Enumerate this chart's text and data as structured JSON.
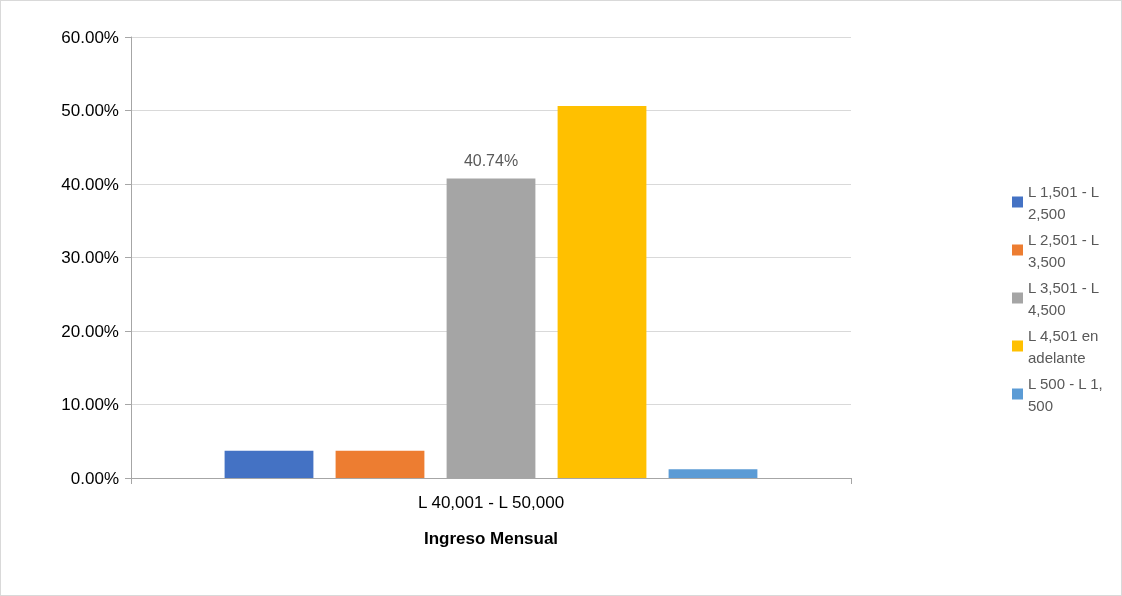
{
  "chart_data": {
    "type": "bar",
    "xlabel": "Ingreso Mensual",
    "categories": [
      "L 40,001 - L 50,000"
    ],
    "series": [
      {
        "name": "L 1,501 - L 2,500",
        "color": "#4472c4",
        "values": [
          3.7
        ],
        "value_labels": [
          null
        ]
      },
      {
        "name": "L 2,501 - L 3,500",
        "color": "#ed7d31",
        "values": [
          3.7
        ],
        "value_labels": [
          null
        ]
      },
      {
        "name": "L 3,501 - L 4,500",
        "color": "#a5a5a5",
        "values": [
          40.74
        ],
        "value_labels": [
          "40.74%"
        ]
      },
      {
        "name": "L 4,501 en adelante",
        "color": "#ffc000",
        "values": [
          50.6
        ],
        "value_labels": [
          null
        ]
      },
      {
        "name": "L 500 - L 1,500",
        "color": "#5b9bd5",
        "values": [
          1.2
        ],
        "value_labels": [
          null
        ]
      }
    ],
    "ylim": [
      0,
      60
    ],
    "yticks": [
      {
        "value": 0,
        "label": "0.00%"
      },
      {
        "value": 10,
        "label": "10.00%"
      },
      {
        "value": 20,
        "label": "20.00%"
      },
      {
        "value": 30,
        "label": "30.00%"
      },
      {
        "value": 40,
        "label": "40.00%"
      },
      {
        "value": 50,
        "label": "50.00%"
      },
      {
        "value": 60,
        "label": "60.00%"
      }
    ],
    "grid": "y",
    "legend": "right"
  }
}
